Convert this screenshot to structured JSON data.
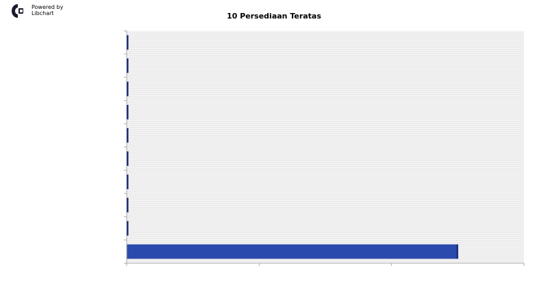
{
  "branding": {
    "powered_by": "Powered by",
    "product": "Libchart"
  },
  "chart_data": {
    "type": "bar",
    "orientation": "horizontal",
    "title": "10 Persediaan Teratas",
    "categories": [
      "",
      "",
      "",
      "",
      "",
      "",
      "",
      "",
      "",
      ""
    ],
    "values": [
      0.1,
      0.1,
      0.1,
      0.1,
      0.1,
      0.1,
      0.1,
      0.1,
      0.1,
      25
    ],
    "xlim": [
      0,
      30
    ],
    "tick_labels_visible": false,
    "grid": true,
    "xlabel": "",
    "ylabel": "",
    "colors": {
      "bar": "#2a4aad",
      "bar_edge": "#1e2f7a",
      "grid": "#e3e3e3",
      "plot_bg": "#f4f4f4",
      "axis": "#aaaaaa"
    }
  }
}
